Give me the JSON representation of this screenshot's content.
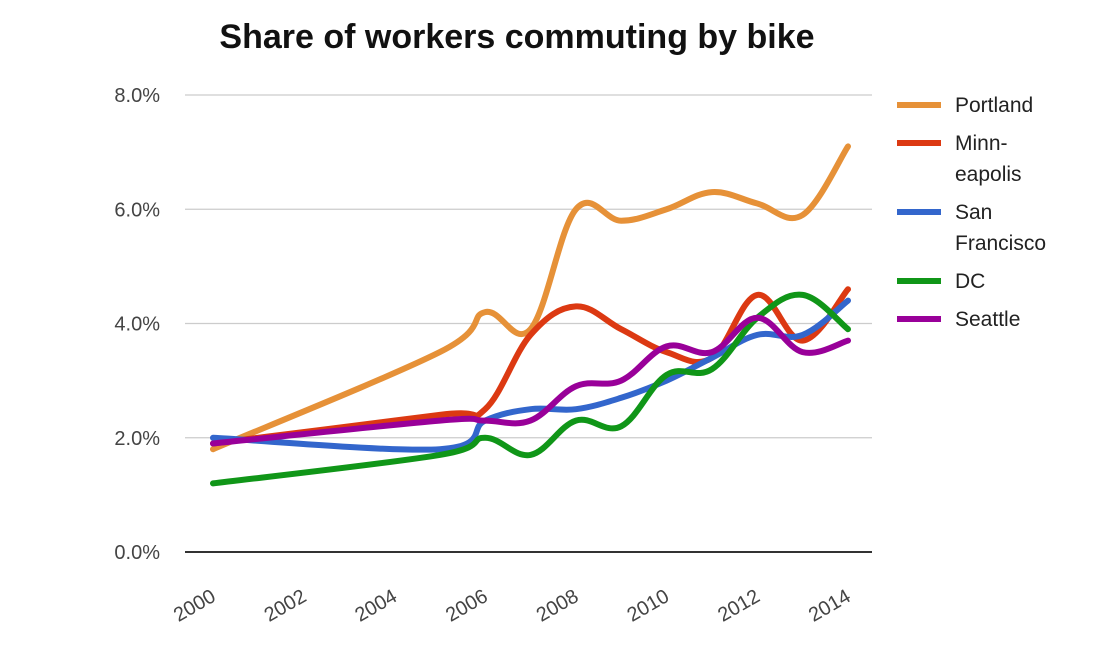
{
  "chart_data": {
    "type": "line",
    "title": "Share of workers commuting by bike",
    "xlabel": "",
    "ylabel": "",
    "xlim": [
      2000,
      2014
    ],
    "ylim": [
      0,
      8
    ],
    "x_ticks": [
      "2000",
      "2002",
      "2004",
      "2006",
      "2008",
      "2010",
      "2012",
      "2014"
    ],
    "y_ticks": [
      "0.0%",
      "2.0%",
      "4.0%",
      "6.0%",
      "8.0%"
    ],
    "grid": true,
    "legend_position": "right",
    "series": [
      {
        "name": "Portland",
        "legend_lines": [
          "Portland"
        ],
        "color": "#E69138",
        "x": [
          2000,
          2005,
          2006,
          2007,
          2008,
          2009,
          2010,
          2011,
          2012,
          2013,
          2014
        ],
        "values": [
          1.8,
          3.5,
          4.2,
          3.9,
          6.0,
          5.8,
          6.0,
          6.3,
          6.1,
          5.9,
          7.1
        ]
      },
      {
        "name": "Minn-eapolis",
        "legend_lines": [
          "Minn-",
          "eapolis"
        ],
        "color": "#DC3912",
        "x": [
          2000,
          2005,
          2006,
          2007,
          2008,
          2009,
          2010,
          2011,
          2012,
          2013,
          2014
        ],
        "values": [
          1.9,
          2.4,
          2.5,
          3.8,
          4.3,
          3.9,
          3.5,
          3.4,
          4.5,
          3.7,
          4.6
        ]
      },
      {
        "name": "San Francisco",
        "legend_lines": [
          "San",
          "Francisco"
        ],
        "color": "#3366CC",
        "x": [
          2000,
          2005,
          2006,
          2007,
          2008,
          2009,
          2010,
          2011,
          2012,
          2013,
          2014
        ],
        "values": [
          2.0,
          1.8,
          2.3,
          2.5,
          2.5,
          2.7,
          3.0,
          3.4,
          3.8,
          3.8,
          4.4
        ]
      },
      {
        "name": "DC",
        "legend_lines": [
          "DC"
        ],
        "color": "#109618",
        "x": [
          2000,
          2005,
          2006,
          2007,
          2008,
          2009,
          2010,
          2011,
          2012,
          2013,
          2014
        ],
        "values": [
          1.2,
          1.7,
          2.0,
          1.7,
          2.3,
          2.2,
          3.1,
          3.2,
          4.1,
          4.5,
          3.9
        ]
      },
      {
        "name": "Seattle",
        "legend_lines": [
          "Seattle"
        ],
        "color": "#990099",
        "x": [
          2000,
          2005,
          2006,
          2007,
          2008,
          2009,
          2010,
          2011,
          2012,
          2013,
          2014
        ],
        "values": [
          1.9,
          2.3,
          2.3,
          2.3,
          2.9,
          3.0,
          3.6,
          3.5,
          4.1,
          3.5,
          3.7
        ]
      }
    ]
  }
}
